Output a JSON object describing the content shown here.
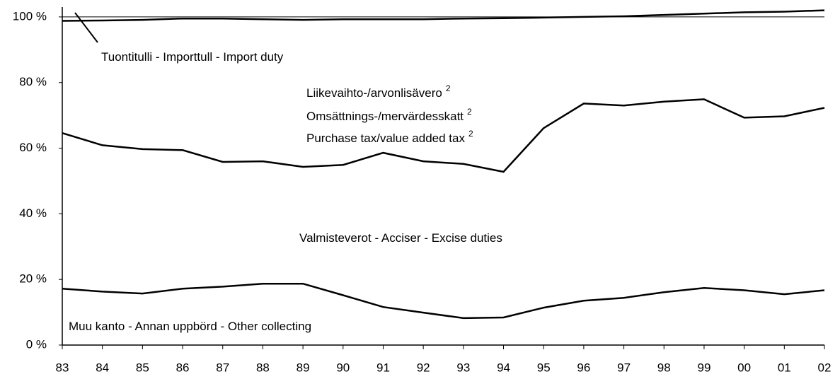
{
  "chart_data": {
    "type": "stacked-line",
    "categories": [
      "83",
      "84",
      "85",
      "86",
      "87",
      "88",
      "89",
      "90",
      "91",
      "92",
      "93",
      "94",
      "95",
      "96",
      "97",
      "98",
      "99",
      "00",
      "01",
      "02"
    ],
    "series": [
      {
        "name": "Muu kanto - Annan uppbörd - Other collecting",
        "color": "#000000",
        "values": [
          17.2,
          16.3,
          15.7,
          17.2,
          17.8,
          18.7,
          18.7,
          15.2,
          11.6,
          9.9,
          8.2,
          8.4,
          11.4,
          13.5,
          14.4,
          16.1,
          17.4,
          16.7,
          15.5,
          16.7
        ]
      },
      {
        "name": "Valmisteverot - Acciser - Excise duties",
        "color": "#000000",
        "values": [
          47.4,
          44.6,
          44.0,
          42.2,
          38.0,
          37.3,
          35.6,
          39.7,
          47.0,
          46.1,
          47.0,
          44.4,
          54.7,
          60.1,
          58.6,
          58.1,
          57.5,
          52.6,
          54.2,
          55.6
        ]
      },
      {
        "name": "Purchase tax/value added tax",
        "color": "#000000",
        "values": [
          34.2,
          38.0,
          39.4,
          40.1,
          43.7,
          43.3,
          44.8,
          44.4,
          40.7,
          43.3,
          44.3,
          46.8,
          33.7,
          26.4,
          27.2,
          26.4,
          26.1,
          32.1,
          31.9,
          29.7
        ]
      }
    ],
    "annotations": [
      {
        "text": "Tuontitulli - Importtull - Import duty"
      },
      {
        "text": "Liikevaihto-/arvonlisävero",
        "note": "2"
      },
      {
        "text": "Omsättnings-/mervärdesskatt",
        "note": "2"
      },
      {
        "text": "Purchase tax/value added tax",
        "note": "2"
      },
      {
        "text": "Valmisteverot - Acciser - Excise duties"
      },
      {
        "text": "Muu kanto - Annan uppbörd - Other collecting"
      }
    ],
    "ylim": [
      0,
      103
    ],
    "yticks": [
      {
        "value": 0,
        "label": "0 %"
      },
      {
        "value": 20,
        "label": "20 %"
      },
      {
        "value": 40,
        "label": "40 %"
      },
      {
        "value": 60,
        "label": "60 %"
      },
      {
        "value": 80,
        "label": "80 %"
      },
      {
        "value": 100,
        "label": "100 %"
      }
    ]
  }
}
